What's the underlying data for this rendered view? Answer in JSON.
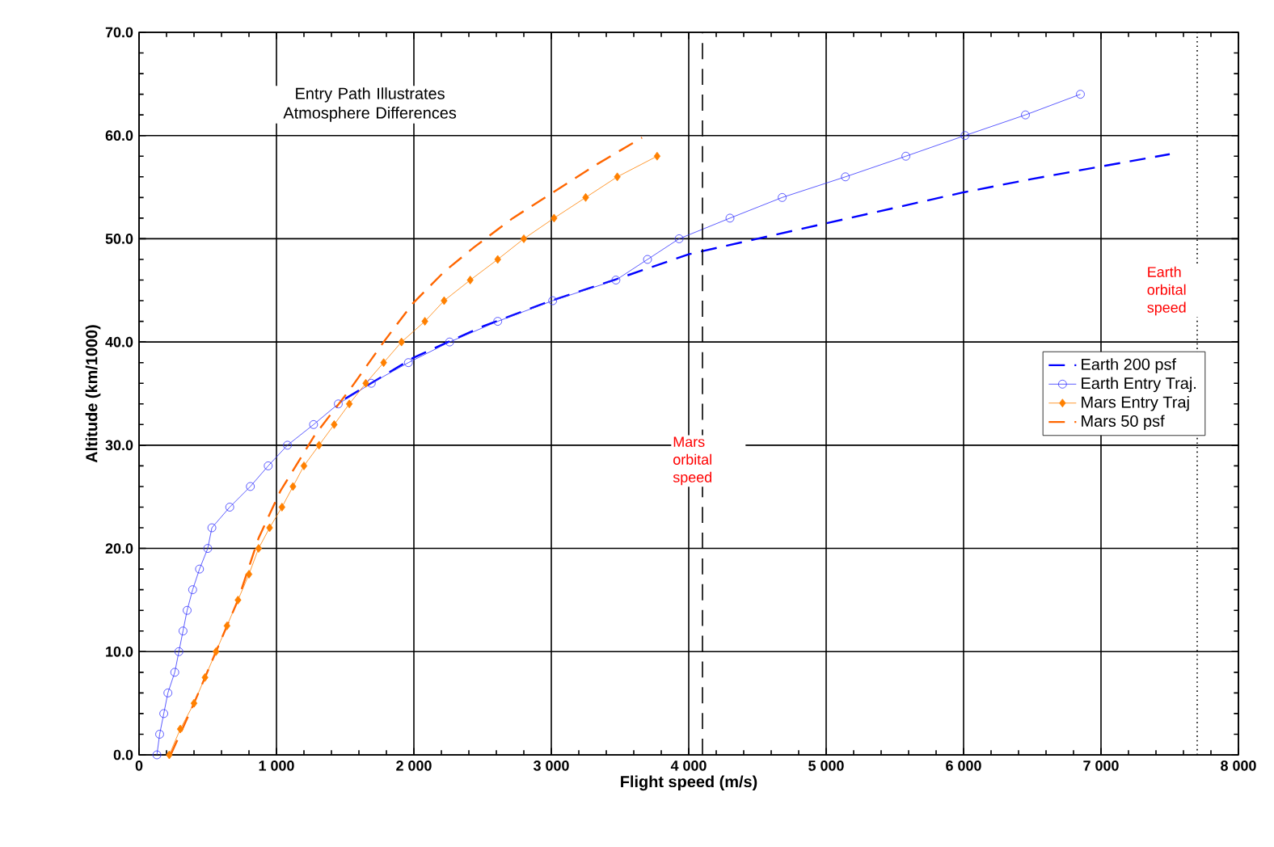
{
  "chart_data": {
    "type": "line",
    "xlabel": "Flight speed  (m/s)",
    "ylabel": "Altitude  (km/1000)",
    "annotations": [
      "Entry Path Illustrates Atmosphere Differences"
    ],
    "xlim": [
      0,
      8000
    ],
    "ylim": [
      0,
      70
    ],
    "xticks": [
      0,
      {
        "value": 1000,
        "label": "1 000"
      },
      {
        "value": 2000,
        "label": "2 000"
      },
      {
        "value": 3000,
        "label": "3 000"
      },
      {
        "value": 4000,
        "label": "4 000"
      },
      {
        "value": 5000,
        "label": "5 000"
      },
      {
        "value": 6000,
        "label": "6 000"
      },
      {
        "value": 7000,
        "label": "7 000"
      },
      {
        "value": 8000,
        "label": "8 000"
      }
    ],
    "yticks": [
      {
        "value": 0,
        "label": "0.0"
      },
      {
        "value": 10,
        "label": "10.0"
      },
      {
        "value": 20,
        "label": "20.0"
      },
      {
        "value": 30,
        "label": "30.0"
      },
      {
        "value": 40,
        "label": "40.0"
      },
      {
        "value": 50,
        "label": "50.0"
      },
      {
        "value": 60,
        "label": "60.0"
      },
      {
        "value": 70,
        "label": "70.0"
      }
    ],
    "grid": true,
    "legend": "right",
    "series": [
      {
        "name": "Earth 200 psf",
        "color": "#0000ff",
        "marker": "none",
        "line_style": "dashed",
        "x": [
          1500,
          2000,
          2500,
          3000,
          3500,
          4000,
          4500,
          5000,
          5500,
          6000,
          6500,
          7000,
          7500
        ],
        "values": [
          34.5,
          38.5,
          41.5,
          44,
          46.2,
          48.5,
          50,
          51.5,
          53,
          54.5,
          55.8,
          57,
          58.2
        ]
      },
      {
        "name": "Earth Entry Traj.",
        "color": "#3333ff",
        "marker": "circle",
        "line_style": "solid",
        "x": [
          130,
          150,
          180,
          210,
          260,
          290,
          320,
          350,
          390,
          440,
          500,
          530,
          660,
          810,
          940,
          1080,
          1270,
          1450,
          1690,
          1960,
          2260,
          2610,
          3010,
          3470,
          3700,
          3930,
          4300,
          4680,
          5140,
          5580,
          6010,
          6450,
          6850
        ],
        "values": [
          0,
          2,
          4,
          6,
          8,
          10,
          12,
          14,
          16,
          18,
          20,
          22,
          24,
          26,
          28,
          30,
          32,
          34,
          36,
          38,
          40,
          42,
          44,
          46,
          48,
          50,
          52,
          54,
          56,
          58,
          60,
          62,
          64
        ]
      },
      {
        "name": "Mars Entry Traj",
        "color": "#ff8000",
        "marker": "diamond",
        "line_style": "solid",
        "x": [
          220,
          300,
          400,
          480,
          560,
          640,
          720,
          800,
          870,
          950,
          1040,
          1120,
          1200,
          1310,
          1420,
          1530,
          1650,
          1780,
          1910,
          2080,
          2220,
          2410,
          2610,
          2800,
          3020,
          3250,
          3480,
          3770
        ],
        "values": [
          0,
          2.5,
          5,
          7.5,
          10,
          12.5,
          15,
          17.5,
          20,
          22,
          24,
          26,
          28,
          30,
          32,
          34,
          36,
          38,
          40,
          42,
          44,
          46,
          48,
          50,
          52,
          54,
          56,
          58
        ]
      },
      {
        "name": "Mars 50 psf",
        "color": "#ff6600",
        "marker": "none",
        "line_style": "dashed",
        "x": [
          230,
          400,
          560,
          720,
          870,
          1030,
          1280,
          1540,
          1780,
          1990,
          2220,
          2440,
          2720,
          2990,
          3330,
          3660
        ],
        "values": [
          0,
          5,
          10,
          15,
          21,
          25.6,
          31,
          35.5,
          40,
          43.7,
          46.8,
          49.2,
          52,
          54.3,
          57.2,
          59.8
        ]
      }
    ],
    "ref_lines": [
      {
        "axis": "x",
        "value": 4100,
        "label": "Mars orbital speed",
        "color": "#000000",
        "line_style": "dashed"
      },
      {
        "axis": "x",
        "value": 7700,
        "label": "Earth orbital speed",
        "color": "#000000",
        "line_style": "dotted"
      }
    ]
  }
}
